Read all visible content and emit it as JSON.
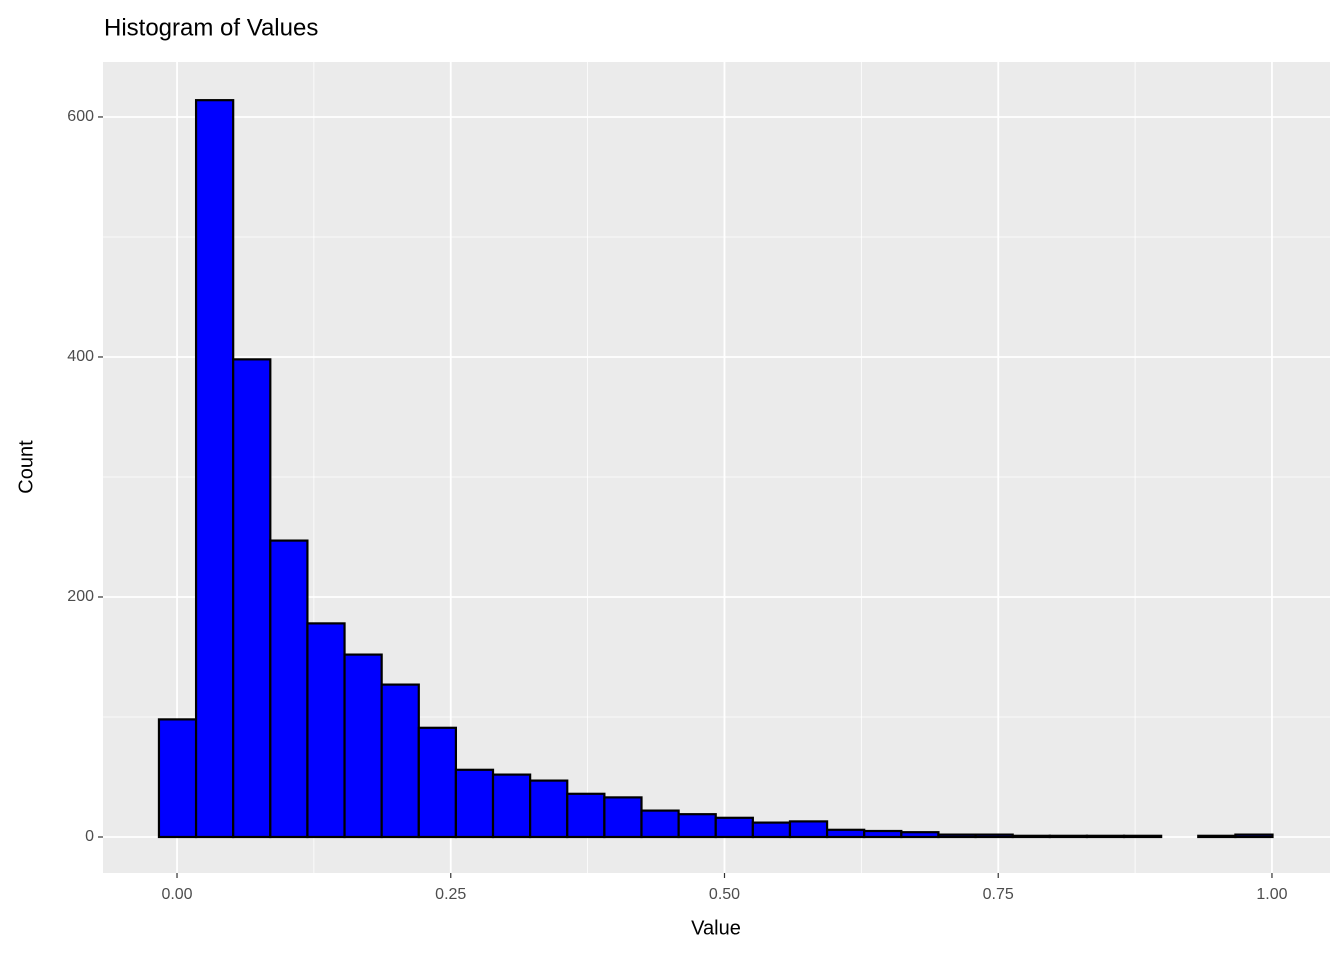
{
  "chart_data": {
    "type": "histogram",
    "title": "Histogram of Values",
    "x_label": "Value",
    "y_label": "Count",
    "bins": [
      -0.0165,
      0.0174,
      0.0513,
      0.0852,
      0.1191,
      0.153,
      0.1869,
      0.2208,
      0.2547,
      0.2886,
      0.3225,
      0.3564,
      0.3903,
      0.4242,
      0.4581,
      0.492,
      0.5259,
      0.5598,
      0.5937,
      0.6276,
      0.6615,
      0.6954,
      0.7293,
      0.7632,
      0.7971,
      0.831,
      0.8649,
      0.8988,
      0.9327,
      0.9666,
      1.0005
    ],
    "values": [
      98,
      614,
      398,
      247,
      178,
      152,
      127,
      91,
      56,
      52,
      47,
      36,
      33,
      22,
      19,
      16,
      12,
      13,
      6,
      5,
      4,
      2,
      2,
      1,
      1,
      1,
      1,
      0,
      1,
      2
    ],
    "color": "#0000ff",
    "edge_color": "#000000",
    "xlim": [
      -0.0676,
      1.053
    ],
    "ylim": [
      -30,
      645.8
    ],
    "xticks": [
      {
        "value": 0,
        "label": "0.00"
      },
      {
        "value": 0.25,
        "label": "0.25"
      },
      {
        "value": 0.5,
        "label": "0.50"
      },
      {
        "value": 0.75,
        "label": "0.75"
      },
      {
        "value": 1,
        "label": "1.00"
      }
    ],
    "yticks": [
      0,
      200,
      400,
      600
    ],
    "grid": true
  }
}
